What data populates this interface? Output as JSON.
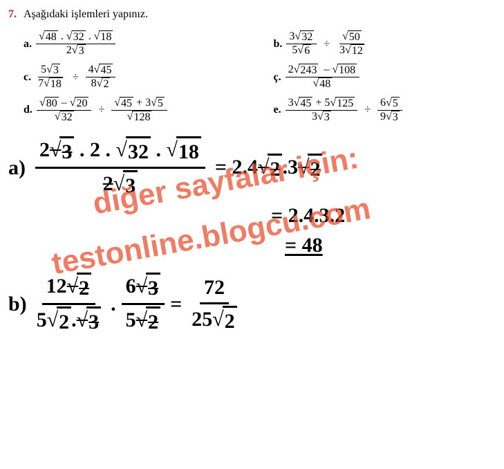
{
  "question": {
    "number": "7.",
    "instruction": "Aşağıdaki işlemleri yapınız."
  },
  "problems": {
    "a": {
      "label": "a.",
      "num_parts": [
        "48",
        "32",
        "18"
      ],
      "den_coef": "2",
      "den_rad": "3"
    },
    "b": {
      "label": "b.",
      "l_num_coef": "3",
      "l_num_rad": "32",
      "l_den_coef": "5",
      "l_den_rad": "6",
      "r_num_rad": "50",
      "r_den_coef": "3",
      "r_den_rad": "12"
    },
    "c": {
      "label": "c.",
      "l_num_coef": "5",
      "l_num_rad": "3",
      "l_den_coef": "7",
      "l_den_rad": "18",
      "r_num_coef": "4",
      "r_num_rad": "45",
      "r_den_coef": "8",
      "r_den_rad": "2"
    },
    "cc": {
      "label": "ç.",
      "num_l_coef": "2",
      "num_l_rad": "243",
      "num_r_rad": "108",
      "den_rad": "48"
    },
    "d": {
      "label": "d.",
      "l_num_l_rad": "80",
      "l_num_r_rad": "20",
      "l_den_rad": "32",
      "r_num_l_rad": "45",
      "r_num_r_coef": "3",
      "r_num_r_rad": "5",
      "r_den_rad": "128"
    },
    "e": {
      "label": "e.",
      "l_num_l_coef": "3",
      "l_num_l_rad": "45",
      "l_num_r_coef": "5",
      "l_num_r_rad": "125",
      "l_den_coef": "3",
      "l_den_rad": "3",
      "r_num_coef": "6",
      "r_num_rad": "5",
      "r_den_coef": "9",
      "r_den_rad": "3"
    }
  },
  "work": {
    "a": {
      "label": "a)",
      "n1": "2",
      "r1": "3",
      "dot": ".",
      "n2": "2",
      "r2": "32",
      "r3": "18",
      "den_n": "2",
      "den_r": "3",
      "eq1": "= 2.4",
      "eq1b": "2",
      "eq1c": ".3",
      "eq1d": "2",
      "line2": "= 2.4.3.2",
      "line3": "= 48"
    },
    "b": {
      "label": "b)",
      "l_num": "12",
      "l_num_r": "2",
      "l_den_n": "5",
      "l_den_r1": "2",
      "l_den_r2": "3",
      "m_num_n": "6",
      "m_num_r": "3",
      "m_den_n": "5",
      "m_den_r": "2",
      "r_num": "72",
      "r_den_n": "25",
      "r_den_r": "2"
    }
  },
  "watermark": {
    "line1": "diğer sayfalar için:",
    "line2": "testonline.blogcu.com"
  }
}
